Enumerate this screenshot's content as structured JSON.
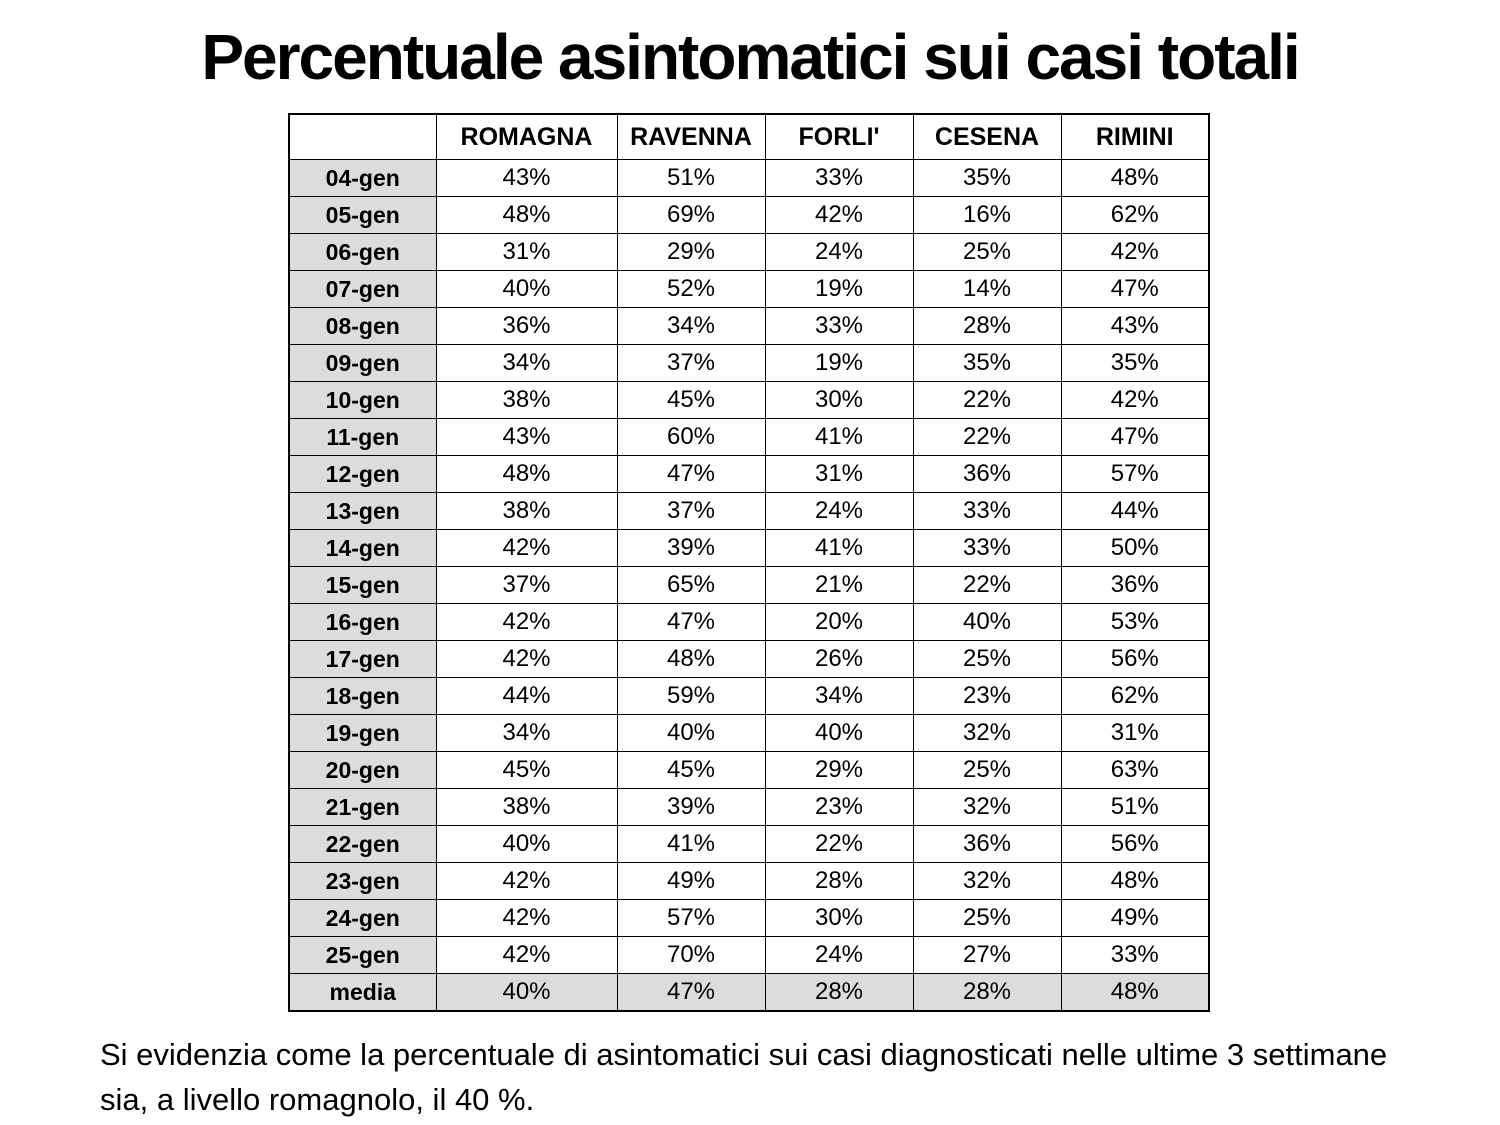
{
  "title": "Percentuale asintomatici sui casi totali",
  "caption": "Si evidenzia come la percentuale di asintomatici sui casi diagnosticati nelle ultime 3 settimane sia, a livello romagnolo, il 40 %.",
  "colors": {
    "border": "#000000",
    "label_column_bg": "#dcdcdc",
    "summary_row_bg": "#dcdcdc",
    "header_row_bg": "#ffffff",
    "page_bg": "#ffffff",
    "text": "#000000"
  },
  "chart_data": {
    "type": "table",
    "title": "Percentuale asintomatici sui casi totali",
    "unit": "%",
    "columns": [
      "ROMAGNA",
      "RAVENNA",
      "FORLI'",
      "CESENA",
      "RIMINI"
    ],
    "corner_label": "",
    "rows": [
      {
        "label": "04-gen",
        "values": [
          43,
          51,
          33,
          35,
          48
        ]
      },
      {
        "label": "05-gen",
        "values": [
          48,
          69,
          42,
          16,
          62
        ]
      },
      {
        "label": "06-gen",
        "values": [
          31,
          29,
          24,
          25,
          42
        ]
      },
      {
        "label": "07-gen",
        "values": [
          40,
          52,
          19,
          14,
          47
        ]
      },
      {
        "label": "08-gen",
        "values": [
          36,
          34,
          33,
          28,
          43
        ]
      },
      {
        "label": "09-gen",
        "values": [
          34,
          37,
          19,
          35,
          35
        ]
      },
      {
        "label": "10-gen",
        "values": [
          38,
          45,
          30,
          22,
          42
        ]
      },
      {
        "label": "11-gen",
        "values": [
          43,
          60,
          41,
          22,
          47
        ]
      },
      {
        "label": "12-gen",
        "values": [
          48,
          47,
          31,
          36,
          57
        ]
      },
      {
        "label": "13-gen",
        "values": [
          38,
          37,
          24,
          33,
          44
        ]
      },
      {
        "label": "14-gen",
        "values": [
          42,
          39,
          41,
          33,
          50
        ]
      },
      {
        "label": "15-gen",
        "values": [
          37,
          65,
          21,
          22,
          36
        ]
      },
      {
        "label": "16-gen",
        "values": [
          42,
          47,
          20,
          40,
          53
        ]
      },
      {
        "label": "17-gen",
        "values": [
          42,
          48,
          26,
          25,
          56
        ]
      },
      {
        "label": "18-gen",
        "values": [
          44,
          59,
          34,
          23,
          62
        ]
      },
      {
        "label": "19-gen",
        "values": [
          34,
          40,
          40,
          32,
          31
        ]
      },
      {
        "label": "20-gen",
        "values": [
          45,
          45,
          29,
          25,
          63
        ]
      },
      {
        "label": "21-gen",
        "values": [
          38,
          39,
          23,
          32,
          51
        ]
      },
      {
        "label": "22-gen",
        "values": [
          40,
          41,
          22,
          36,
          56
        ]
      },
      {
        "label": "23-gen",
        "values": [
          42,
          49,
          28,
          32,
          48
        ]
      },
      {
        "label": "24-gen",
        "values": [
          42,
          57,
          30,
          25,
          49
        ]
      },
      {
        "label": "25-gen",
        "values": [
          42,
          70,
          24,
          27,
          33
        ]
      },
      {
        "label": "media",
        "values": [
          40,
          47,
          28,
          28,
          48
        ],
        "summary": true
      }
    ]
  }
}
